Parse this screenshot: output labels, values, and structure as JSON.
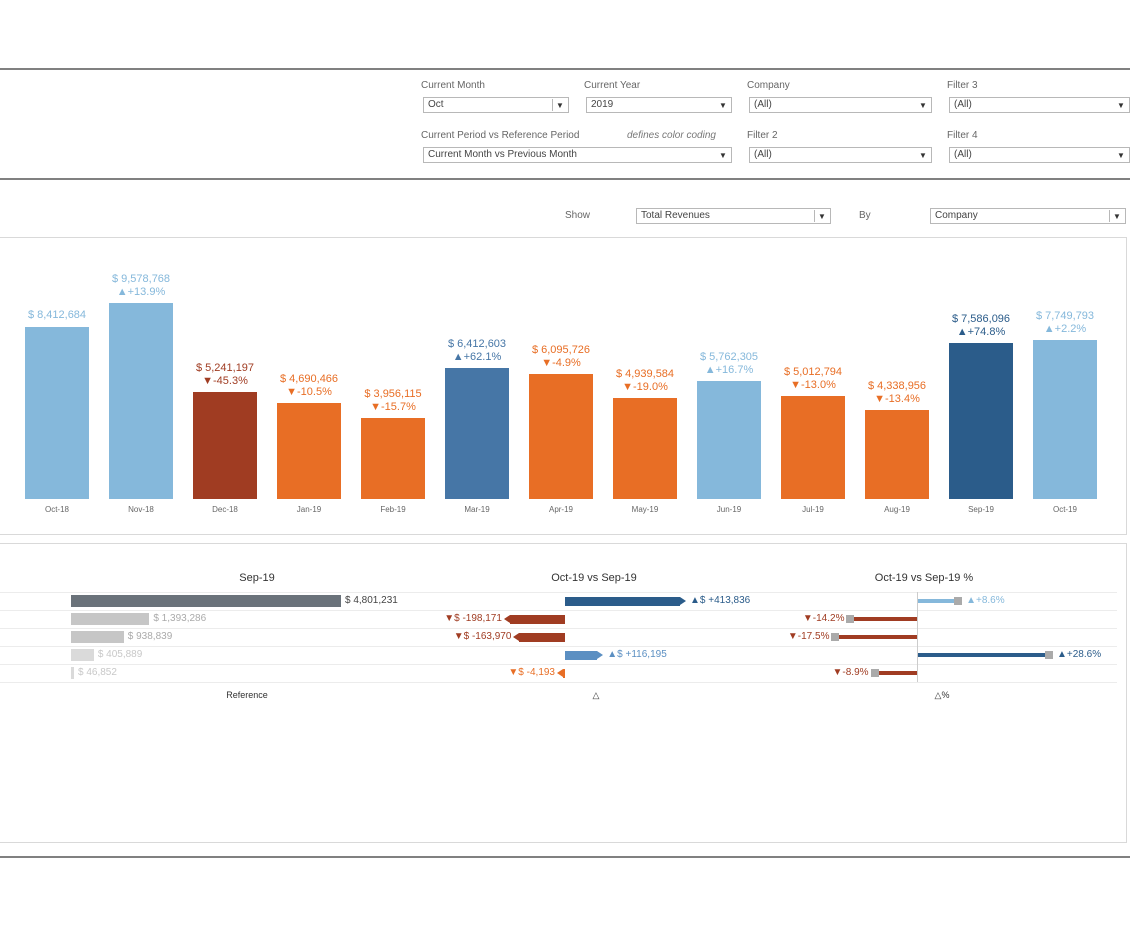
{
  "filters": {
    "current_month": {
      "label": "Current Month",
      "value": "Oct"
    },
    "current_year": {
      "label": "Current Year",
      "value": "2019"
    },
    "company": {
      "label": "Company",
      "value": "(All)"
    },
    "filter3": {
      "label": "Filter 3",
      "value": "(All)"
    },
    "period_compare": {
      "label": "Current Period vs Reference Period",
      "note": "defines color coding",
      "value": "Current Month vs Previous Month"
    },
    "filter2": {
      "label": "Filter 2",
      "value": "(All)"
    },
    "filter4": {
      "label": "Filter 4",
      "value": "(All)"
    }
  },
  "show_controls": {
    "show_label": "Show",
    "show_value": "Total Revenues",
    "by_label": "By",
    "by_value": "Company"
  },
  "colors": {
    "light_blue": "#85b8db",
    "mid_blue": "#4676a6",
    "dark_blue": "#2b5c8a",
    "orange": "#e86e25",
    "dark_red": "#a03c22",
    "dark_gray": "#6a727a",
    "gray": "#c6c6c6",
    "light_gray": "#dadada"
  },
  "chart_data": [
    {
      "type": "bar",
      "categories": [
        "Oct-18",
        "Nov-18",
        "Dec-18",
        "Jan-19",
        "Feb-19",
        "Mar-19",
        "Apr-19",
        "May-19",
        "Jun-19",
        "Jul-19",
        "Aug-19",
        "Sep-19",
        "Oct-19"
      ],
      "values": [
        8412684,
        9578768,
        5241197,
        4690466,
        3956115,
        6412603,
        6095726,
        4939584,
        5762305,
        5012794,
        4338956,
        7586096,
        7749793
      ],
      "value_labels": [
        "$ 8,412,684",
        "$ 9,578,768",
        "$ 5,241,197",
        "$ 4,690,466",
        "$ 3,956,115",
        "$ 6,412,603",
        "$ 6,095,726",
        "$ 4,939,584",
        "$ 5,762,305",
        "$ 5,012,794",
        "$ 4,338,956",
        "$ 7,586,096",
        "$ 7,749,793"
      ],
      "change_labels": [
        "",
        "▲+13.9%",
        "▼-45.3%",
        "▼-10.5%",
        "▼-15.7%",
        "▲+62.1%",
        "▼-4.9%",
        "▼-19.0%",
        "▲+16.7%",
        "▼-13.0%",
        "▼-13.4%",
        "▲+74.8%",
        "▲+2.2%"
      ],
      "bar_colors": [
        "#85b8db",
        "#85b8db",
        "#a03c22",
        "#e86e25",
        "#e86e25",
        "#4676a6",
        "#e86e25",
        "#e86e25",
        "#85b8db",
        "#e86e25",
        "#e86e25",
        "#2b5c8a",
        "#85b8db"
      ],
      "ylim": [
        0,
        10000000
      ]
    },
    {
      "type": "bar",
      "title": "Sep-19",
      "xlabel": "Reference",
      "values": [
        4801231,
        1393286,
        938839,
        405889,
        46852
      ],
      "value_labels": [
        "$ 4,801,231",
        "$ 1,393,286",
        "$ 938,839",
        "$ 405,889",
        "$ 46,852"
      ],
      "bar_colors": [
        "#6a727a",
        "#c6c6c6",
        "#c6c6c6",
        "#dadada",
        "#dadada"
      ]
    },
    {
      "type": "bar",
      "title": "Oct-19 vs Sep-19",
      "xlabel": "△",
      "values": [
        413836,
        -198171,
        -163970,
        116195,
        -4193
      ],
      "value_labels": [
        "▲$ +413,836",
        "▼$ -198,171",
        "▼$ -163,970",
        "▲$ +116,195",
        "▼$ -4,193"
      ],
      "bar_colors": [
        "#2b5c8a",
        "#a03c22",
        "#a03c22",
        "#5b8fc2",
        "#e86e25"
      ]
    },
    {
      "type": "bar",
      "title": "Oct-19 vs Sep-19 %",
      "xlabel": "△%",
      "values": [
        8.6,
        -14.2,
        -17.5,
        28.6,
        -8.9
      ],
      "value_labels": [
        "▲+8.6%",
        "▼-14.2%",
        "▼-17.5%",
        "▲+28.6%",
        "▼-8.9%"
      ],
      "bar_colors": [
        "#85b8db",
        "#a03c22",
        "#a03c22",
        "#2b5c8a",
        "#a03c22"
      ]
    }
  ]
}
